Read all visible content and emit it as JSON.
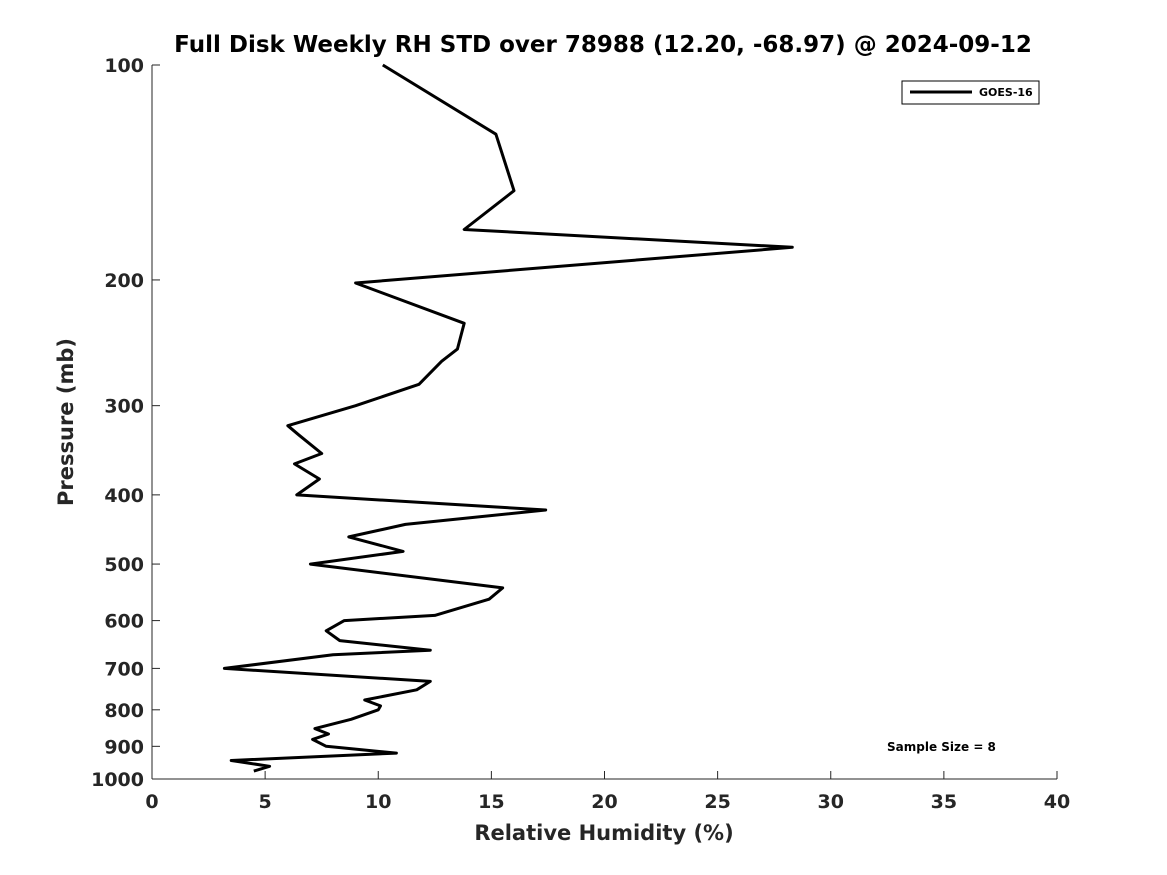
{
  "chart_data": {
    "type": "line",
    "title": "Full Disk Weekly RH STD over 78988 (12.20, -68.97) @ 2024-09-12",
    "xlabel": "Relative Humidity (%)",
    "ylabel": "Pressure (mb)",
    "xlim": [
      0,
      40
    ],
    "ylim": [
      1000,
      100
    ],
    "y_scale": "log",
    "y_reversed": true,
    "x_ticks": [
      "0",
      "5",
      "10",
      "15",
      "20",
      "25",
      "30",
      "35",
      "40"
    ],
    "y_ticks": [
      "100",
      "200",
      "300",
      "400",
      "500",
      "600",
      "700",
      "800",
      "900",
      "1000"
    ],
    "legend_position": "top-right",
    "grid": false,
    "annotation": "Sample Size = 8",
    "series": [
      {
        "name": "GOES-16",
        "color": "#000000",
        "x": [
          10.2,
          15.2,
          16.0,
          13.8,
          28.3,
          9.0,
          13.8,
          13.5,
          12.8,
          11.8,
          9.0,
          6.0,
          6.5,
          7.5,
          6.3,
          7.4,
          6.4,
          17.4,
          11.2,
          8.7,
          11.1,
          7.0,
          15.5,
          14.9,
          12.5,
          8.5,
          7.7,
          8.3,
          12.3,
          8.0,
          3.2,
          12.3,
          11.7,
          9.4,
          10.1,
          10.0,
          8.8,
          7.2,
          7.8,
          7.1,
          7.7,
          10.8,
          3.5,
          5.2,
          4.5
        ],
        "y": [
          100,
          125,
          150,
          170,
          180,
          202,
          230,
          250,
          260,
          280,
          300,
          320,
          330,
          350,
          362,
          380,
          400,
          420,
          440,
          458,
          480,
          500,
          540,
          560,
          590,
          600,
          620,
          640,
          660,
          670,
          700,
          730,
          750,
          775,
          790,
          800,
          825,
          850,
          865,
          880,
          900,
          920,
          942,
          960,
          975
        ]
      }
    ]
  }
}
